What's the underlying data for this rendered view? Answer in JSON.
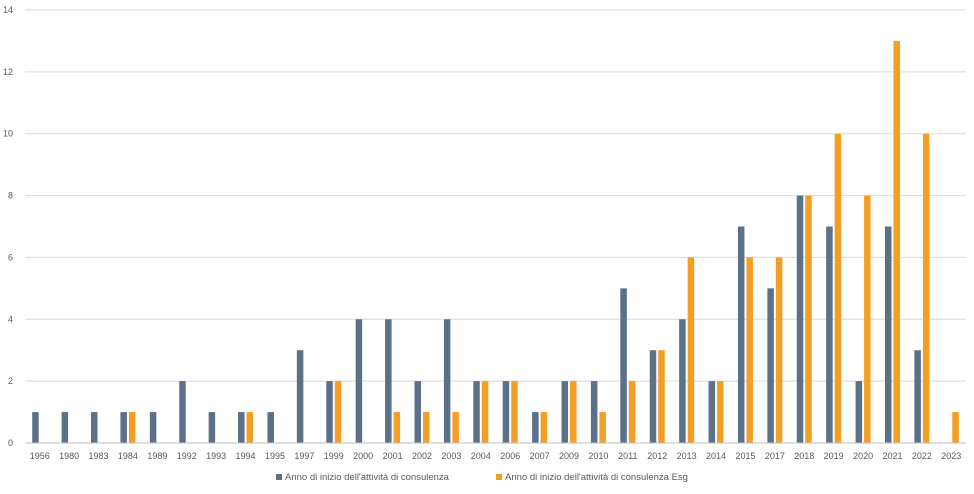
{
  "chart_data": {
    "type": "bar",
    "categories": [
      "1956",
      "1980",
      "1983",
      "1984",
      "1989",
      "1992",
      "1993",
      "1994",
      "1995",
      "1997",
      "1999",
      "2000",
      "2001",
      "2002",
      "2003",
      "2004",
      "2006",
      "2007",
      "2009",
      "2010",
      "2011",
      "2012",
      "2013",
      "2014",
      "2015",
      "2017",
      "2018",
      "2019",
      "2020",
      "2021",
      "2022",
      "2023"
    ],
    "series": [
      {
        "name": "Anno di inizio dell'attività di consulenza",
        "color": "#5b7089",
        "values": [
          1,
          1,
          1,
          1,
          1,
          2,
          1,
          1,
          1,
          3,
          2,
          4,
          4,
          2,
          4,
          2,
          2,
          1,
          2,
          2,
          5,
          3,
          4,
          2,
          7,
          5,
          8,
          7,
          2,
          7,
          3,
          0
        ]
      },
      {
        "name": "Anno di inizio dell'attività di consulenza Esg",
        "color": "#f59e24",
        "values": [
          0,
          0,
          0,
          1,
          0,
          0,
          0,
          1,
          0,
          0,
          2,
          0,
          1,
          1,
          1,
          2,
          2,
          1,
          2,
          1,
          2,
          3,
          6,
          2,
          6,
          6,
          8,
          10,
          8,
          13,
          10,
          1
        ]
      }
    ],
    "yticks": [
      "0",
      "2",
      "4",
      "6",
      "8",
      "10",
      "12",
      "14"
    ],
    "ylim": [
      0,
      14
    ],
    "grid": true,
    "legend": "bottom",
    "title": "",
    "xlabel": "",
    "ylabel": ""
  }
}
